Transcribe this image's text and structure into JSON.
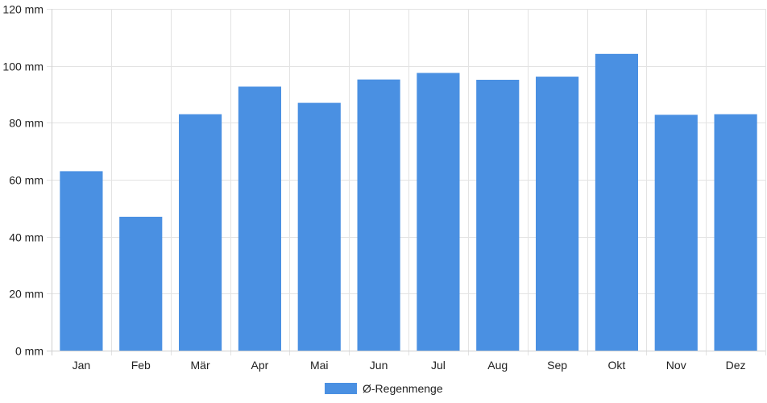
{
  "chart_data": {
    "type": "bar",
    "categories": [
      "Jan",
      "Feb",
      "Mär",
      "Apr",
      "Mai",
      "Jun",
      "Jul",
      "Aug",
      "Sep",
      "Okt",
      "Nov",
      "Dez"
    ],
    "series": [
      {
        "name": "Ø-Regenmenge",
        "color": "#4a90e2",
        "values": [
          63,
          47,
          83,
          92.7,
          87,
          95.2,
          97.5,
          95.1,
          96.2,
          104.2,
          82.8,
          83
        ]
      }
    ],
    "ylim": [
      0,
      120
    ],
    "yticks": [
      0,
      20,
      40,
      60,
      80,
      100,
      120
    ],
    "ytick_labels": [
      "0 mm",
      "20 mm",
      "40 mm",
      "60 mm",
      "80 mm",
      "100 mm",
      "120 mm"
    ],
    "title": "",
    "xlabel": "",
    "ylabel": "",
    "grid": true,
    "legend_position": "bottom-center"
  },
  "legend": {
    "label": "Ø-Regenmenge"
  }
}
